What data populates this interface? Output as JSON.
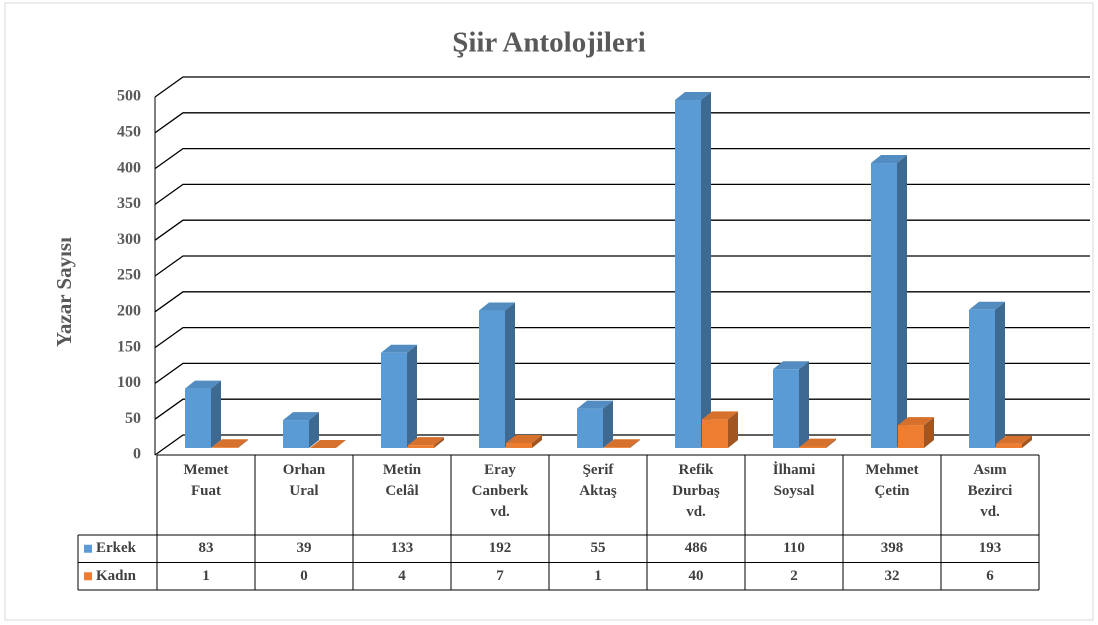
{
  "chart_data": {
    "type": "bar3d",
    "title": "Şiir Antolojileri",
    "y_label": "Yazar Sayısı",
    "categories": [
      "Memet Fuat",
      "Orhan Ural",
      "Metin Celâl",
      "Eray Canberk vd.",
      "Şerif Aktaş",
      "Refik Durbaş vd.",
      "İlhami Soysal",
      "Mehmet Çetin",
      "Asım Bezirci vd."
    ],
    "series": [
      {
        "name": "Erkek",
        "color": "#5b9bd5",
        "values": [
          83,
          39,
          133,
          192,
          55,
          486,
          110,
          398,
          193
        ]
      },
      {
        "name": "Kadın",
        "color": "#ed7d31",
        "values": [
          1,
          0,
          4,
          7,
          1,
          40,
          2,
          32,
          6
        ]
      }
    ],
    "ylim": [
      0,
      500
    ],
    "yticks": [
      0,
      50,
      100,
      150,
      200,
      250,
      300,
      350,
      400,
      450,
      500
    ],
    "grid": true,
    "data_table": true
  }
}
